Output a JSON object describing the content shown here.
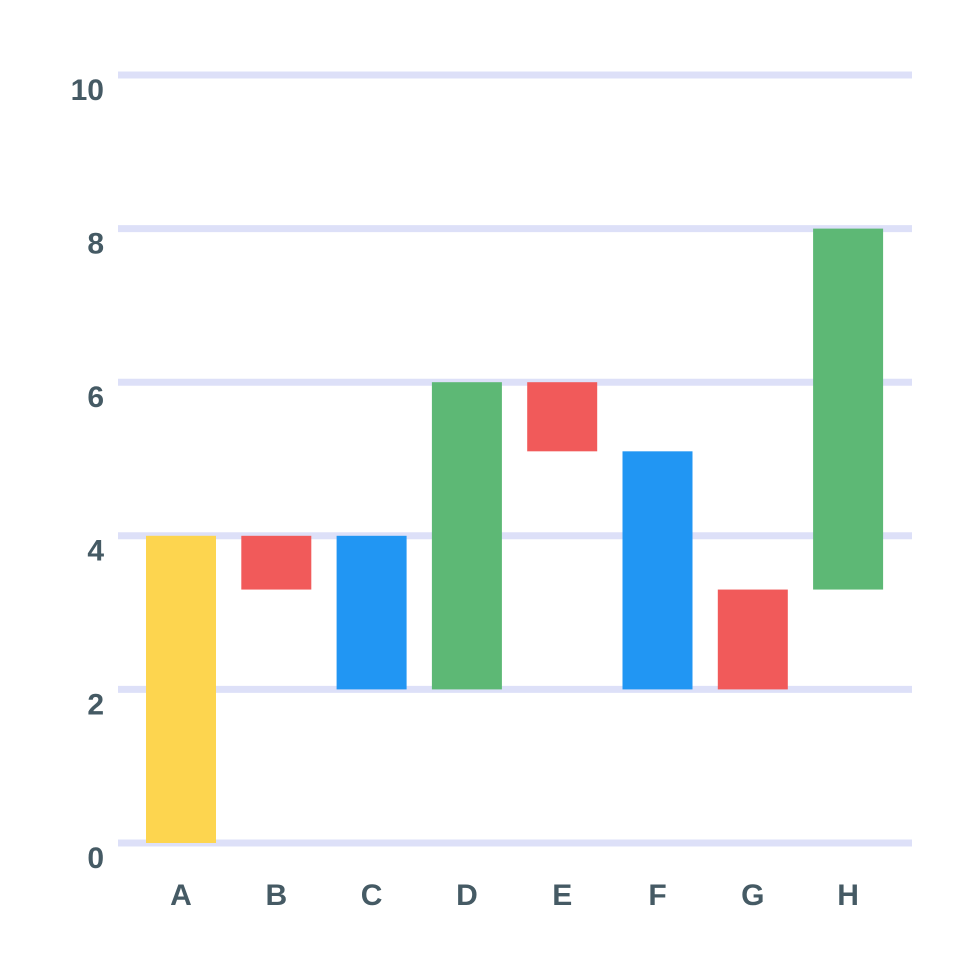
{
  "chart_data": {
    "type": "floating-bar",
    "categories": [
      "A",
      "B",
      "C",
      "D",
      "E",
      "F",
      "G",
      "H"
    ],
    "low": [
      0,
      3.3,
      2,
      2,
      5.1,
      2,
      2,
      3.3
    ],
    "high": [
      4,
      4,
      4,
      6,
      6,
      5.1,
      3.3,
      8
    ],
    "colors": [
      "#fdd54f",
      "#f15a5a",
      "#2196f3",
      "#5db875",
      "#f15a5a",
      "#2196f3",
      "#f15a5a",
      "#5db875"
    ],
    "ylim": [
      0,
      10
    ],
    "yticks": [
      0,
      2,
      4,
      6,
      8,
      10
    ],
    "grid": true,
    "grid_color": "#dde0f8"
  }
}
